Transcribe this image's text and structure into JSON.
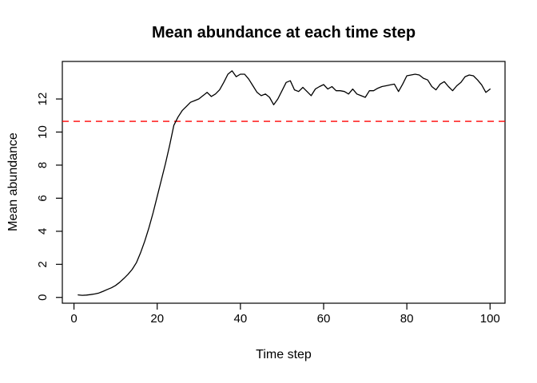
{
  "title": "Mean abundance at each time step",
  "colors": {
    "background": "#FFFFFF",
    "axis": "#000000",
    "series_line": "#000000",
    "reference_line": "#FF0000"
  },
  "chart_data": {
    "type": "line",
    "title": "Mean abundance at each time step",
    "xlabel": "Time step",
    "ylabel": "Mean abundance",
    "xlim": [
      -2.8,
      103.6
    ],
    "ylim": [
      -0.35,
      14.27
    ],
    "x_ticks": [
      0,
      20,
      40,
      60,
      80,
      100
    ],
    "y_ticks": [
      0,
      2,
      4,
      6,
      8,
      10,
      12
    ],
    "grid": false,
    "legend": "none",
    "reference_line": {
      "value": 10.65,
      "style": "dashed",
      "color": "#FF0000"
    },
    "series": [
      {
        "name": "mean abundance",
        "color": "#000000",
        "x_start": 1,
        "x_step": 1,
        "values": [
          0.15,
          0.13,
          0.14,
          0.17,
          0.21,
          0.27,
          0.37,
          0.48,
          0.58,
          0.72,
          0.92,
          1.15,
          1.4,
          1.7,
          2.1,
          2.7,
          3.4,
          4.2,
          5.1,
          6.1,
          7.1,
          8.1,
          9.2,
          10.4,
          10.9,
          11.3,
          11.55,
          11.8,
          11.9,
          12.0,
          12.2,
          12.4,
          12.15,
          12.3,
          12.55,
          13.0,
          13.5,
          13.7,
          13.35,
          13.5,
          13.5,
          13.2,
          12.8,
          12.4,
          12.2,
          12.3,
          12.1,
          11.65,
          12.0,
          12.5,
          13.0,
          13.1,
          12.55,
          12.45,
          12.7,
          12.45,
          12.2,
          12.6,
          12.75,
          12.87,
          12.6,
          12.75,
          12.5,
          12.5,
          12.45,
          12.3,
          12.6,
          12.3,
          12.2,
          12.1,
          12.5,
          12.5,
          12.65,
          12.75,
          12.8,
          12.85,
          12.9,
          12.45,
          12.9,
          13.4,
          13.45,
          13.5,
          13.45,
          13.25,
          13.15,
          12.75,
          12.55,
          12.9,
          13.05,
          12.75,
          12.5,
          12.8,
          13.0,
          13.35,
          13.45,
          13.4,
          13.15,
          12.85,
          12.4,
          12.6
        ]
      }
    ]
  }
}
